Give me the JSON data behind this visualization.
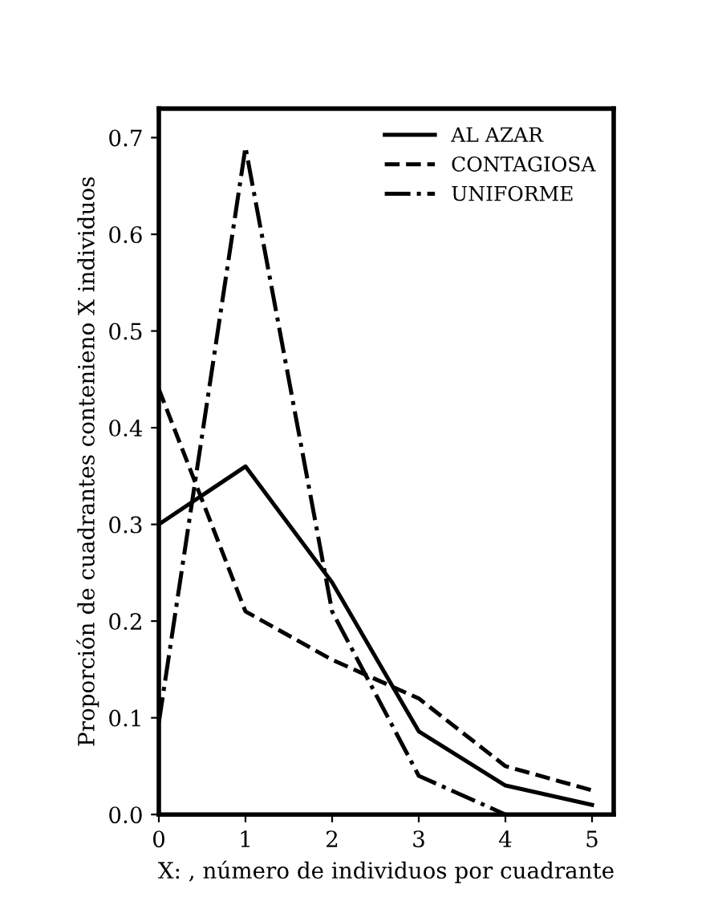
{
  "chart_data": {
    "type": "line",
    "xlabel": "X: , número de individuos por cuadrante",
    "ylabel": "Proporción de cuadrantes contenieno X individuos",
    "x": [
      0,
      1,
      2,
      3,
      4,
      5
    ],
    "series": [
      {
        "name": "AL AZAR",
        "color": "#000000",
        "line_style": "solid",
        "values": [
          0.3,
          0.36,
          0.24,
          0.086,
          0.03,
          0.01
        ]
      },
      {
        "name": "CONTAGIOSA",
        "color": "#000000",
        "line_style": "dashed",
        "values": [
          0.44,
          0.21,
          0.16,
          0.12,
          0.05,
          0.025
        ]
      },
      {
        "name": "UNIFORME",
        "color": "#000000",
        "line_style": "dashdot",
        "values": [
          0.095,
          0.69,
          0.21,
          0.04,
          0.0,
          null
        ]
      }
    ],
    "xlim": [
      0,
      5.25
    ],
    "ylim": [
      0,
      0.73
    ],
    "xticks": [
      0,
      1,
      2,
      3,
      4,
      5
    ],
    "yticks": [
      {
        "value": 0,
        "label": "0.0"
      },
      0.1,
      0.2,
      0.3,
      0.4,
      0.5,
      0.6,
      0.7
    ],
    "grid": false,
    "legend": "top right",
    "marker": "none"
  }
}
